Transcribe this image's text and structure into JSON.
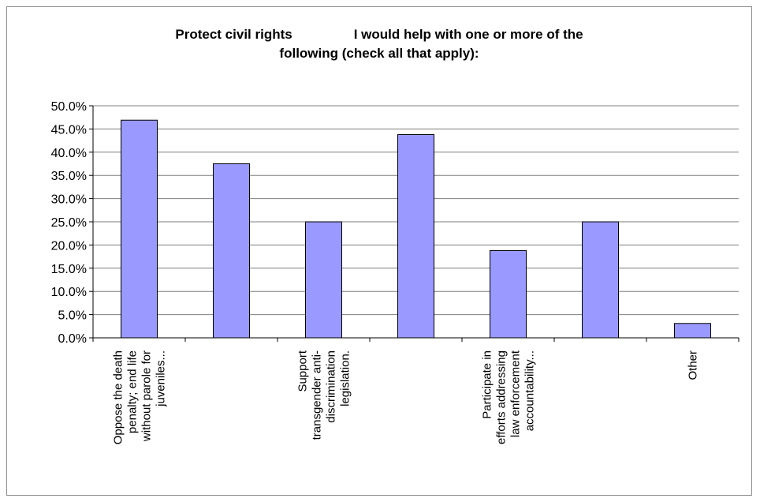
{
  "chart_data": {
    "type": "bar",
    "title_part1": "Protect civil rights",
    "title_part2": "I would help with one or more of the",
    "title_part3": "following (check all that apply):",
    "categories": [
      [
        "Oppose the death",
        "penalty; end life",
        "without parole for",
        "juveniles..."
      ],
      [],
      [
        "Support",
        "transgender anti-",
        "discrimination",
        "legislation."
      ],
      [],
      [
        "Participate in",
        "efforts addressing",
        "law enforcement",
        "accountability..."
      ],
      [],
      [
        "Other"
      ]
    ],
    "values": [
      0.469,
      0.375,
      0.25,
      0.438,
      0.188,
      0.25,
      0.031
    ],
    "ylim": [
      0,
      0.5
    ],
    "yticks": [
      0,
      0.05,
      0.1,
      0.15,
      0.2,
      0.25,
      0.3,
      0.35,
      0.4,
      0.45,
      0.5
    ],
    "ytick_labels": [
      "0.0%",
      "5.0%",
      "10.0%",
      "15.0%",
      "20.0%",
      "25.0%",
      "30.0%",
      "35.0%",
      "40.0%",
      "45.0%",
      "50.0%"
    ],
    "grid": true,
    "legend": "none",
    "bar_color": "#9999ff",
    "bar_border": "#000000"
  }
}
